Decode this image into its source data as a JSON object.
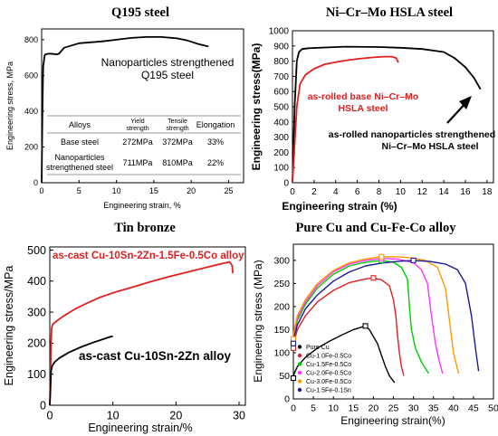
{
  "chart_data": [
    {
      "id": "q195",
      "type": "line",
      "title": "Q195 steel",
      "xlabel": "Engineering strain, %",
      "ylabel": "Engineering stress,  MPa",
      "xlim": [
        0,
        27
      ],
      "ylim": [
        0,
        860
      ],
      "xticks": [
        "0",
        "5",
        "10",
        "15",
        "20",
        "25"
      ],
      "yticks": [
        "0",
        "200",
        "400",
        "600",
        "800"
      ],
      "series": [
        {
          "name": "Nanoparticles strengthened Q195 steel",
          "color": "#000000",
          "x": [
            0,
            0.1,
            0.2,
            0.4,
            0.5,
            1.0,
            1.6,
            2.0,
            2.3,
            3,
            5,
            8,
            10,
            12,
            14,
            16,
            18,
            19.5,
            21,
            22.3
          ],
          "y": [
            0,
            380,
            650,
            712,
            718,
            722,
            720,
            718,
            721,
            755,
            780,
            790,
            800,
            810,
            815,
            815,
            808,
            795,
            775,
            762
          ]
        }
      ],
      "annotation": [
        "Nanoparticles strengthened",
        "Q195 steel"
      ],
      "table": {
        "headers": [
          "Alloys",
          "Yield strength",
          "Tensile strength",
          "Elongation"
        ],
        "rows": [
          [
            "Base steel",
            "272MPa",
            "372MPa",
            "33%"
          ],
          [
            "Nanoparticles strengthened steel",
            "711MPa",
            "810MPa",
            "22%"
          ]
        ]
      }
    },
    {
      "id": "nicrmo",
      "type": "line",
      "title": "Ni–Cr–Mo HSLA steel",
      "xlabel": "Engineering strain (%)",
      "ylabel": "Engineering stress(MPa)",
      "xlim": [
        0,
        18.6
      ],
      "ylim": [
        0,
        1000
      ],
      "xticks": [
        "0",
        "2",
        "4",
        "6",
        "8",
        "10",
        "12",
        "14",
        "16",
        "18"
      ],
      "yticks": [
        "0",
        "100",
        "200",
        "300",
        "400",
        "500",
        "600",
        "700",
        "800",
        "900",
        "1000"
      ],
      "series": [
        {
          "name": "as-rolled nanoparticles strengthened Ni–Cr–Mo HSLA steel",
          "color": "#000000",
          "x": [
            0,
            0.2,
            0.4,
            0.6,
            0.9,
            1.5,
            3,
            5,
            8,
            10,
            12,
            14,
            15,
            16,
            16.8,
            17.4
          ],
          "y": [
            0,
            500,
            800,
            860,
            880,
            885,
            890,
            895,
            893,
            888,
            880,
            860,
            820,
            760,
            690,
            615
          ]
        },
        {
          "name": "as-rolled base Ni–Cr–Mo HSLA steel",
          "color": "#e02020",
          "x": [
            0,
            0.2,
            0.4,
            0.7,
            1.2,
            2,
            3,
            4.5,
            6,
            7.5,
            8.5,
            9.2,
            9.6,
            9.8
          ],
          "y": [
            0,
            250,
            500,
            650,
            710,
            750,
            780,
            800,
            815,
            825,
            830,
            830,
            820,
            790
          ]
        }
      ],
      "annotation": [
        "as-rolled base Ni–Cr–Mo",
        "HSLA steel",
        "as-rolled nanoparticles strengthened",
        "Ni–Cr–Mo HSLA steel"
      ]
    },
    {
      "id": "tinbronze",
      "type": "line",
      "title": "Tin bronze",
      "xlabel": "Engineering strain/%",
      "ylabel": "Engineering stress/MPa",
      "xlim": [
        0,
        31
      ],
      "ylim": [
        0,
        510
      ],
      "xticks": [
        "0",
        "10",
        "20",
        "30"
      ],
      "yticks": [
        "0",
        "100",
        "200",
        "300",
        "400",
        "500"
      ],
      "series": [
        {
          "name": "as-cast Cu-10Sn-2Zn-1.5Fe-0.5Co alloy",
          "color": "#e02020",
          "x": [
            0,
            0.1,
            0.2,
            0.3,
            0.5,
            1,
            2,
            4,
            6,
            8,
            10,
            13,
            16,
            19,
            22,
            25,
            27,
            28.5,
            28.9,
            29
          ],
          "y": [
            0,
            80,
            200,
            250,
            262,
            270,
            285,
            310,
            330,
            348,
            362,
            380,
            398,
            415,
            430,
            445,
            455,
            462,
            450,
            425
          ]
        },
        {
          "name": "as-cast Cu-10Sn-2Zn alloy",
          "color": "#000000",
          "x": [
            0,
            0.1,
            0.2,
            0.4,
            0.8,
            1.5,
            3,
            5,
            7,
            8.5,
            9.5,
            10
          ],
          "y": [
            0,
            50,
            110,
            128,
            140,
            152,
            170,
            188,
            203,
            213,
            220,
            222
          ]
        }
      ]
    },
    {
      "id": "pure-cu",
      "type": "line",
      "title": "Pure Cu and Cu-Fe-Co alloy",
      "xlabel": "Engineering strain(%)",
      "ylabel": "Engineering stress (MPa)",
      "xlim": [
        0,
        50
      ],
      "ylim": [
        0,
        335
      ],
      "xticks": [
        "0",
        "5",
        "10",
        "15",
        "20",
        "25",
        "30",
        "35",
        "40",
        "45",
        "50"
      ],
      "yticks": [
        "0",
        "50",
        "100",
        "150",
        "200",
        "250",
        "300"
      ],
      "legend": "bottom-left",
      "series": [
        {
          "name": "Pure Cu",
          "color": "#000000",
          "x": [
            0,
            0.2,
            1,
            3,
            6,
            9,
            12,
            15,
            18,
            19,
            20,
            21,
            22,
            23,
            24,
            25.3
          ],
          "y": [
            45,
            55,
            70,
            90,
            110,
            125,
            138,
            150,
            158,
            150,
            135,
            120,
            95,
            70,
            50,
            35
          ]
        },
        {
          "name": "Cu-1.0Fe-0.5Co",
          "color": "#e02020",
          "x": [
            0,
            0.2,
            1,
            3,
            6,
            10,
            14,
            18,
            20,
            22,
            24,
            25,
            25.6,
            26,
            26.5,
            27,
            27.6
          ],
          "y": [
            110,
            125,
            150,
            180,
            210,
            235,
            252,
            260,
            262,
            258,
            245,
            215,
            180,
            140,
            100,
            70,
            50
          ]
        },
        {
          "name": "Cu-1.5Fe-0.5Co",
          "color": "#00cc00",
          "x": [
            0,
            0.2,
            1,
            3,
            6,
            10,
            14,
            18,
            22,
            25,
            27,
            28.5,
            29,
            29.5,
            30.5,
            32,
            33.8
          ],
          "y": [
            120,
            140,
            170,
            205,
            240,
            270,
            288,
            296,
            300,
            296,
            285,
            260,
            200,
            150,
            110,
            80,
            55
          ]
        },
        {
          "name": "Cu-2.0Fe-0.5Co",
          "color": "#ff33ff",
          "x": [
            0,
            0.2,
            1,
            3,
            6,
            10,
            14,
            18,
            22,
            26,
            30,
            32,
            33.5,
            34.5,
            35.5,
            36.5,
            37.3
          ],
          "y": [
            125,
            145,
            175,
            210,
            245,
            275,
            292,
            300,
            304,
            303,
            295,
            280,
            250,
            180,
            120,
            80,
            55
          ]
        },
        {
          "name": "Cu-3.0Fe-0.5Co",
          "color": "#ff9900",
          "x": [
            0,
            0.2,
            1,
            3,
            6,
            10,
            14,
            18,
            22,
            26,
            30,
            33,
            36,
            38,
            39,
            40,
            41.3
          ],
          "y": [
            130,
            150,
            180,
            215,
            250,
            278,
            295,
            303,
            308,
            308,
            305,
            300,
            285,
            240,
            170,
            100,
            55
          ]
        },
        {
          "name": "Cu-1.5Fe-0.1Sn",
          "color": "#1a1a99",
          "x": [
            0,
            0.2,
            1,
            3,
            6,
            10,
            14,
            18,
            22,
            26,
            30,
            34,
            38,
            41,
            43,
            44.5,
            45.5,
            46.3
          ],
          "y": [
            120,
            135,
            160,
            195,
            225,
            255,
            275,
            288,
            294,
            298,
            300,
            298,
            292,
            280,
            250,
            180,
            110,
            60
          ]
        }
      ]
    }
  ]
}
